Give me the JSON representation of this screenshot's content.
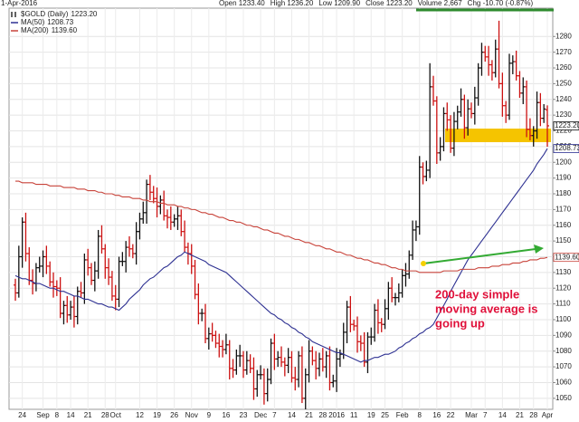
{
  "chart_data": {
    "type": "ohlc",
    "date_label": "1-Apr-2016",
    "quote": [
      "Open 1233.40",
      "High 1236.20",
      "Low 1209.90",
      "Close 1223.20",
      "Volume 2,667",
      "Chg -10.70 (-0.87%)"
    ],
    "annotation": [
      "200-day simple",
      "moving average is",
      "going up"
    ],
    "ylim": [
      1043,
      1298
    ],
    "yticks": [
      1050,
      1060,
      1070,
      1080,
      1090,
      1100,
      1110,
      1120,
      1130,
      1140,
      1150,
      1160,
      1170,
      1180,
      1190,
      1200,
      1210,
      1220,
      1230,
      1240,
      1250,
      1260,
      1270,
      1280
    ],
    "grid": true,
    "categories": [
      null,
      null,
      "24",
      null,
      null,
      null,
      null,
      null,
      "Sep",
      null,
      null,
      null,
      "8",
      null,
      null,
      null,
      "14",
      null,
      null,
      null,
      null,
      "21",
      null,
      null,
      null,
      null,
      "28",
      null,
      null,
      "Oct",
      null,
      null,
      null,
      null,
      null,
      null,
      "12",
      null,
      null,
      null,
      null,
      "19",
      null,
      null,
      null,
      null,
      "26",
      null,
      null,
      null,
      null,
      "Nov",
      null,
      null,
      null,
      null,
      "9",
      null,
      null,
      null,
      null,
      "16",
      null,
      null,
      null,
      null,
      "23",
      null,
      null,
      null,
      null,
      "Dec",
      null,
      null,
      null,
      "7",
      null,
      null,
      null,
      null,
      "14",
      null,
      null,
      null,
      null,
      "21",
      null,
      null,
      null,
      "28",
      null,
      null,
      null,
      "2016",
      null,
      null,
      null,
      null,
      "11",
      null,
      null,
      null,
      null,
      "19",
      null,
      null,
      null,
      "25",
      null,
      null,
      null,
      null,
      "Feb",
      null,
      null,
      null,
      null,
      "8",
      null,
      null,
      null,
      null,
      "16",
      null,
      null,
      null,
      "22",
      null,
      null,
      null,
      null,
      null,
      "Mar",
      null,
      null,
      null,
      "7",
      null,
      null,
      null,
      null,
      "14",
      null,
      null,
      null,
      null,
      "21",
      null,
      null,
      null,
      "28",
      null,
      null,
      null,
      "Apr"
    ],
    "series": [
      {
        "name": "$GOLD (Daily)",
        "type": "ohlc",
        "up_color": "#111111",
        "down_color": "#cc1111",
        "last_label": "1223.20",
        "open": [
          1122,
          1117,
          1140,
          1162,
          1142,
          1125,
          1123,
          1133,
          1134,
          1140,
          1134,
          1124,
          1121,
          1120,
          1104,
          1109,
          1103,
          1108,
          1102,
          1118,
          1117,
          1138,
          1133,
          1125,
          1131,
          1153,
          1145,
          1133,
          1127,
          1115,
          1113,
          1137,
          1137,
          1146,
          1145,
          1142,
          1156,
          1164,
          1168,
          1186,
          1181,
          1177,
          1172,
          1176,
          1166,
          1165,
          1162,
          1164,
          1166,
          1156,
          1146,
          1142,
          1134,
          1116,
          1104,
          1104,
          1088,
          1091,
          1090,
          1085,
          1083,
          1081,
          1084,
          1069,
          1068,
          1077,
          1077,
          1068,
          1074,
          1069,
          1056,
          1065,
          1065,
          1053,
          1062,
          1085,
          1075,
          1076,
          1073,
          1071,
          1076,
          1063,
          1062,
          1077,
          1050,
          1065,
          1080,
          1074,
          1069,
          1075,
          1070,
          1077,
          1060,
          1061,
          1075,
          1078,
          1092,
          1108,
          1097,
          1096,
          1086,
          1085,
          1073,
          1089,
          1089,
          1106,
          1098,
          1097,
          1107,
          1120,
          1114,
          1114,
          1117,
          1128,
          1129,
          1141,
          1157,
          1159,
          1197,
          1191,
          1195,
          1248,
          1239,
          1206,
          1210,
          1231,
          1227,
          1209,
          1226,
          1232,
          1240,
          1222,
          1234,
          1231,
          1241,
          1260,
          1270,
          1267,
          1262,
          1257,
          1272,
          1250,
          1236,
          1230,
          1263,
          1264,
          1255,
          1244,
          1248,
          1221,
          1217,
          1220,
          1238,
          1228,
          1233.4
        ],
        "high": [
          1126,
          1147,
          1165,
          1168,
          1146,
          1132,
          1136,
          1140,
          1144,
          1147,
          1137,
          1130,
          1125,
          1127,
          1112,
          1115,
          1112,
          1115,
          1121,
          1124,
          1142,
          1145,
          1136,
          1137,
          1157,
          1160,
          1148,
          1139,
          1131,
          1122,
          1140,
          1143,
          1150,
          1153,
          1148,
          1162,
          1168,
          1175,
          1189,
          1192,
          1185,
          1184,
          1179,
          1182,
          1170,
          1172,
          1167,
          1172,
          1170,
          1163,
          1149,
          1148,
          1138,
          1123,
          1107,
          1110,
          1095,
          1098,
          1093,
          1091,
          1087,
          1091,
          1087,
          1075,
          1081,
          1084,
          1080,
          1080,
          1078,
          1076,
          1068,
          1071,
          1069,
          1069,
          1088,
          1091,
          1080,
          1083,
          1076,
          1082,
          1080,
          1070,
          1080,
          1083,
          1069,
          1087,
          1083,
          1080,
          1079,
          1082,
          1080,
          1083,
          1065,
          1082,
          1081,
          1098,
          1112,
          1115,
          1100,
          1102,
          1090,
          1092,
          1092,
          1095,
          1110,
          1113,
          1101,
          1113,
          1124,
          1127,
          1117,
          1123,
          1132,
          1136,
          1144,
          1163,
          1163,
          1204,
          1200,
          1201,
          1263,
          1255,
          1242,
          1216,
          1235,
          1238,
          1230,
          1232,
          1236,
          1247,
          1243,
          1240,
          1238,
          1248,
          1263,
          1276,
          1274,
          1274,
          1265,
          1278,
          1290,
          1257,
          1239,
          1269,
          1268,
          1271,
          1258,
          1254,
          1252,
          1228,
          1223,
          1245,
          1244,
          1237,
          1236.2
        ],
        "low": [
          1112,
          1114,
          1133,
          1137,
          1122,
          1116,
          1118,
          1130,
          1127,
          1129,
          1121,
          1114,
          1115,
          1101,
          1097,
          1098,
          1100,
          1095,
          1097,
          1114,
          1110,
          1128,
          1122,
          1118,
          1126,
          1142,
          1126,
          1122,
          1112,
          1106,
          1108,
          1134,
          1130,
          1140,
          1139,
          1135,
          1151,
          1161,
          1161,
          1176,
          1174,
          1165,
          1167,
          1163,
          1158,
          1157,
          1159,
          1157,
          1153,
          1143,
          1135,
          1129,
          1113,
          1097,
          1099,
          1085,
          1081,
          1086,
          1082,
          1076,
          1076,
          1078,
          1062,
          1063,
          1065,
          1070,
          1063,
          1065,
          1066,
          1049,
          1051,
          1062,
          1046,
          1048,
          1059,
          1068,
          1070,
          1070,
          1064,
          1066,
          1060,
          1055,
          1057,
          1047,
          1043,
          1060,
          1071,
          1062,
          1064,
          1067,
          1063,
          1055,
          1057,
          1054,
          1070,
          1075,
          1085,
          1092,
          1093,
          1079,
          1080,
          1070,
          1066,
          1084,
          1086,
          1091,
          1092,
          1094,
          1100,
          1111,
          1109,
          1111,
          1114,
          1121,
          1126,
          1138,
          1150,
          1154,
          1186,
          1188,
          1190,
          1236,
          1199,
          1201,
          1207,
          1220,
          1206,
          1204,
          1221,
          1229,
          1215,
          1217,
          1228,
          1224,
          1236,
          1255,
          1264,
          1255,
          1252,
          1254,
          1247,
          1229,
          1225,
          1227,
          1256,
          1252,
          1241,
          1237,
          1216,
          1214,
          1210,
          1215,
          1223,
          1225,
          1209.9
        ],
        "close": [
          1117,
          1140,
          1162,
          1142,
          1125,
          1123,
          1133,
          1134,
          1140,
          1134,
          1124,
          1121,
          1120,
          1104,
          1109,
          1103,
          1108,
          1102,
          1118,
          1117,
          1138,
          1133,
          1125,
          1131,
          1153,
          1145,
          1133,
          1127,
          1115,
          1113,
          1137,
          1137,
          1146,
          1145,
          1142,
          1156,
          1164,
          1168,
          1186,
          1181,
          1177,
          1172,
          1176,
          1166,
          1165,
          1162,
          1164,
          1166,
          1156,
          1146,
          1142,
          1134,
          1116,
          1104,
          1104,
          1088,
          1091,
          1090,
          1085,
          1083,
          1081,
          1084,
          1069,
          1068,
          1077,
          1077,
          1068,
          1074,
          1069,
          1056,
          1065,
          1065,
          1053,
          1062,
          1085,
          1075,
          1076,
          1073,
          1071,
          1076,
          1063,
          1062,
          1077,
          1050,
          1065,
          1080,
          1074,
          1069,
          1075,
          1070,
          1077,
          1060,
          1061,
          1075,
          1078,
          1092,
          1108,
          1097,
          1096,
          1086,
          1085,
          1073,
          1089,
          1089,
          1106,
          1098,
          1097,
          1107,
          1120,
          1114,
          1114,
          1117,
          1128,
          1129,
          1141,
          1157,
          1159,
          1197,
          1191,
          1195,
          1248,
          1239,
          1206,
          1210,
          1231,
          1227,
          1209,
          1226,
          1232,
          1240,
          1222,
          1234,
          1231,
          1241,
          1260,
          1270,
          1267,
          1262,
          1257,
          1272,
          1250,
          1236,
          1230,
          1263,
          1264,
          1255,
          1244,
          1248,
          1221,
          1217,
          1220,
          1238,
          1228,
          1233.9,
          1223.2
        ]
      },
      {
        "name": "MA(50)",
        "type": "line",
        "color": "#2e3192",
        "last_label": "1208.73",
        "values": [
          1128,
          1127,
          1126,
          1126,
          1125,
          1124,
          1123,
          1123,
          1122,
          1121,
          1120,
          1120,
          1119,
          1118,
          1118,
          1117,
          1116,
          1115,
          1115,
          1114,
          1113,
          1113,
          1112,
          1111,
          1110,
          1110,
          1109,
          1108,
          1108,
          1107,
          1106,
          1108,
          1110,
          1113,
          1115,
          1117,
          1119,
          1122,
          1124,
          1126,
          1127,
          1129,
          1131,
          1133,
          1134,
          1136,
          1138,
          1140,
          1141,
          1143,
          1142,
          1141,
          1140,
          1139,
          1138,
          1137,
          1135,
          1134,
          1133,
          1132,
          1131,
          1130,
          1128,
          1126,
          1124,
          1122,
          1120,
          1118,
          1116,
          1114,
          1112,
          1110,
          1108,
          1106,
          1104,
          1103,
          1101,
          1100,
          1098,
          1097,
          1095,
          1094,
          1092,
          1091,
          1089,
          1088,
          1086,
          1085,
          1084,
          1083,
          1082,
          1081,
          1080,
          1079,
          1079,
          1078,
          1077,
          1076,
          1075,
          1074,
          1073,
          1074,
          1074,
          1075,
          1076,
          1076,
          1077,
          1078,
          1078,
          1079,
          1080,
          1082,
          1083,
          1085,
          1086,
          1088,
          1089,
          1091,
          1092,
          1094,
          1095,
          1097,
          1101,
          1105,
          1109,
          1113,
          1118,
          1122,
          1126,
          1130,
          1134,
          1138,
          1141,
          1144,
          1147,
          1150,
          1153,
          1156,
          1159,
          1162,
          1165,
          1168,
          1171,
          1174,
          1177,
          1180,
          1183,
          1186,
          1189,
          1192,
          1195,
          1199,
          1202,
          1205,
          1208.73
        ]
      },
      {
        "name": "MA(200)",
        "type": "line",
        "color": "#c8433a",
        "last_label": "1139.60",
        "values": [
          1188,
          1188,
          1187,
          1187,
          1187,
          1187,
          1186,
          1186,
          1186,
          1186,
          1185,
          1185,
          1185,
          1185,
          1184,
          1184,
          1184,
          1184,
          1183,
          1183,
          1183,
          1182,
          1182,
          1182,
          1181,
          1181,
          1180,
          1180,
          1180,
          1179,
          1179,
          1178,
          1178,
          1178,
          1177,
          1177,
          1177,
          1176,
          1176,
          1175,
          1175,
          1175,
          1174,
          1174,
          1173,
          1173,
          1173,
          1172,
          1172,
          1171,
          1171,
          1170,
          1170,
          1169,
          1168,
          1168,
          1167,
          1167,
          1166,
          1165,
          1165,
          1164,
          1163,
          1163,
          1162,
          1162,
          1161,
          1160,
          1160,
          1159,
          1159,
          1158,
          1157,
          1157,
          1156,
          1155,
          1155,
          1154,
          1153,
          1153,
          1152,
          1151,
          1151,
          1150,
          1149,
          1149,
          1148,
          1147,
          1147,
          1146,
          1145,
          1145,
          1144,
          1143,
          1143,
          1142,
          1141,
          1141,
          1140,
          1139,
          1139,
          1138,
          1138,
          1137,
          1136,
          1136,
          1135,
          1135,
          1134,
          1133,
          1133,
          1132,
          1132,
          1131,
          1131,
          1131,
          1131,
          1130,
          1130,
          1130,
          1130,
          1130,
          1130,
          1130,
          1131,
          1131,
          1131,
          1131,
          1131,
          1132,
          1132,
          1132,
          1132,
          1132,
          1133,
          1133,
          1133,
          1133,
          1134,
          1134,
          1134,
          1135,
          1135,
          1135,
          1136,
          1136,
          1136,
          1137,
          1137,
          1138,
          1138,
          1138,
          1139,
          1139,
          1139.6
        ]
      }
    ]
  }
}
